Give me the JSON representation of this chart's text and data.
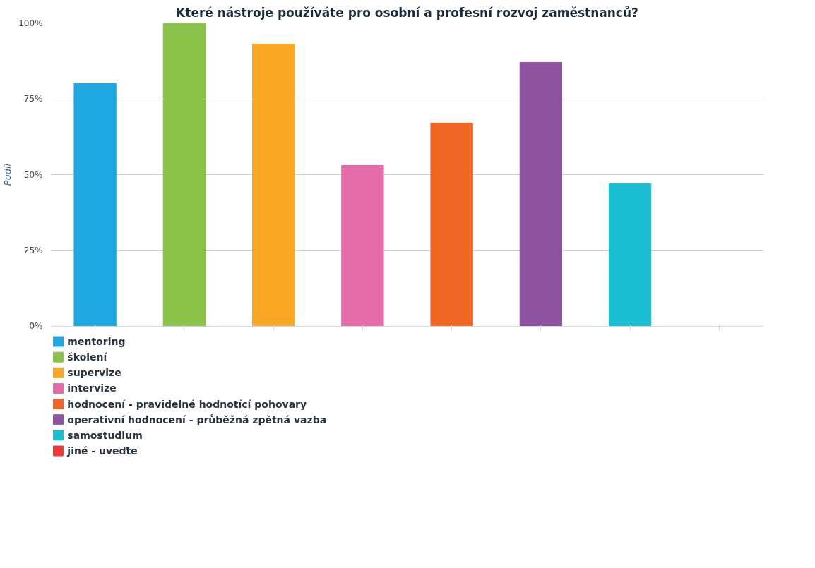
{
  "chart_data": {
    "type": "bar",
    "title": "Které nástroje používáte pro osobní a profesní rozvoj zaměstnanců?",
    "ylabel": "Podíl",
    "categories": [
      null,
      null,
      null,
      null,
      null,
      null,
      null,
      null
    ],
    "series": [
      {
        "name": "mentoring",
        "color": "#1fa8e0",
        "values": [
          80,
          null,
          null,
          null,
          null,
          null,
          null,
          null
        ]
      },
      {
        "name": "školení",
        "color": "#8bc34a",
        "values": [
          null,
          100,
          null,
          null,
          null,
          null,
          null,
          null
        ]
      },
      {
        "name": "supervize",
        "color": "#f9a825",
        "values": [
          null,
          null,
          93,
          null,
          null,
          null,
          null,
          null
        ]
      },
      {
        "name": "intervize",
        "color": "#e56ca8",
        "values": [
          null,
          null,
          null,
          53,
          null,
          null,
          null,
          null
        ]
      },
      {
        "name": "hodnocení - pravidelné hodnotící pohovary",
        "color": "#ee6524",
        "values": [
          null,
          null,
          null,
          null,
          67,
          null,
          null,
          null
        ]
      },
      {
        "name": "operativní hodnocení - průběžná zpětná vazba",
        "color": "#8e54a0",
        "values": [
          null,
          null,
          null,
          null,
          null,
          87,
          null,
          null
        ]
      },
      {
        "name": "samostudium",
        "color": "#1bbdd0",
        "values": [
          null,
          null,
          null,
          null,
          null,
          null,
          47,
          null
        ]
      },
      {
        "name": "jiné - uveďte",
        "color": "#ee3a3a",
        "values": [
          null,
          null,
          null,
          null,
          null,
          null,
          null,
          0
        ]
      }
    ],
    "ylim": [
      0,
      100
    ],
    "yticks": [
      {
        "value": 0,
        "label": "0%"
      },
      {
        "value": 25,
        "label": "25%"
      },
      {
        "value": 50,
        "label": "50%"
      },
      {
        "value": 75,
        "label": "75%"
      },
      {
        "value": 100,
        "label": "100%"
      }
    ],
    "grid": "y",
    "legend": "bottom",
    "tick_labels": "y"
  }
}
